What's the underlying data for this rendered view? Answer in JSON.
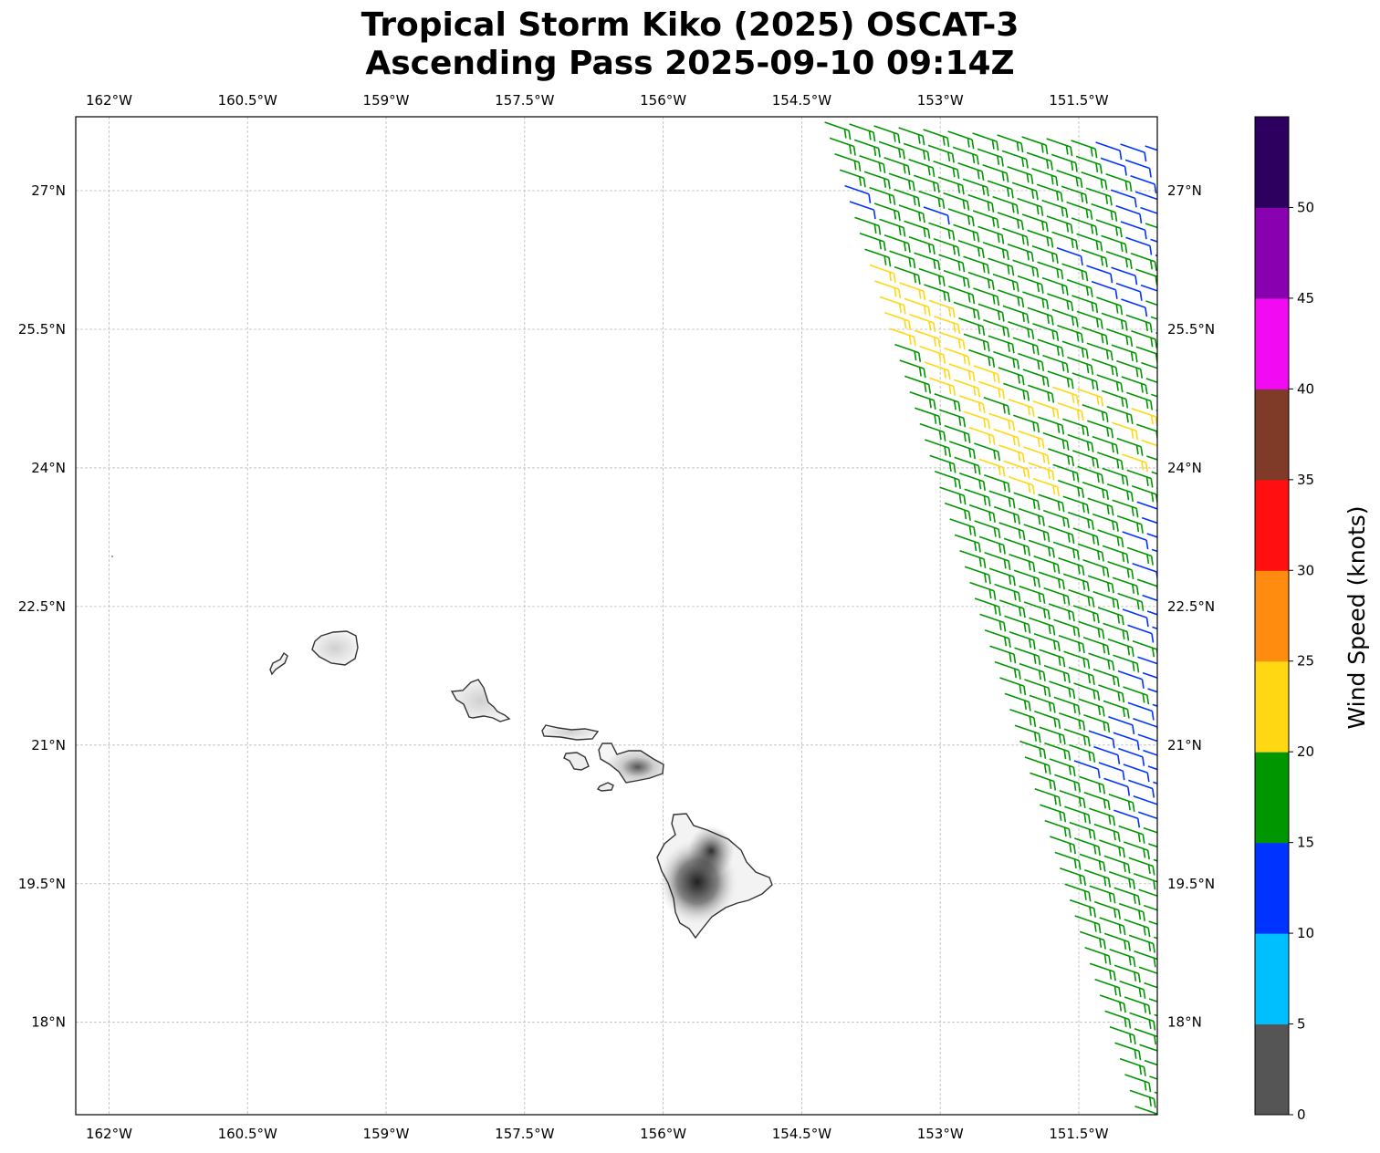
{
  "title": {
    "line1": "Tropical Storm Kiko (2025) OSCAT-3",
    "line2": "Ascending Pass 2025-09-10 09:14Z"
  },
  "chart_data": {
    "type": "map-wind-barbs",
    "lon_range": [
      -162.36,
      -150.65
    ],
    "lat_range": [
      17.0,
      27.8
    ],
    "lon_ticks": [
      {
        "value": -162,
        "label": "162°W"
      },
      {
        "value": -160.5,
        "label": "160.5°W"
      },
      {
        "value": -159,
        "label": "159°W"
      },
      {
        "value": -157.5,
        "label": "157.5°W"
      },
      {
        "value": -156,
        "label": "156°W"
      },
      {
        "value": -154.5,
        "label": "154.5°W"
      },
      {
        "value": -153,
        "label": "153°W"
      },
      {
        "value": -151.5,
        "label": "151.5°W"
      }
    ],
    "lat_ticks": [
      {
        "value": 27,
        "label": "27°N"
      },
      {
        "value": 25.5,
        "label": "25.5°N"
      },
      {
        "value": 24,
        "label": "24°N"
      },
      {
        "value": 22.5,
        "label": "22.5°N"
      },
      {
        "value": 21,
        "label": "21°N"
      },
      {
        "value": 19.5,
        "label": "19.5°N"
      },
      {
        "value": 18,
        "label": "18°N"
      }
    ],
    "grid": true,
    "colorbar": {
      "label": "Wind Speed (knots)",
      "bounds": [
        0,
        5,
        10,
        15,
        20,
        25,
        30,
        35,
        40,
        45,
        50,
        55
      ],
      "colors": [
        "#555555",
        "#00bfff",
        "#0033ff",
        "#009600",
        "#ffd712",
        "#ff8c0f",
        "#ff0f0f",
        "#7f3a28",
        "#f20af2",
        "#8800b0",
        "#2d0060"
      ],
      "tick_labels": [
        "0",
        "5",
        "10",
        "15",
        "20",
        "25",
        "30",
        "35",
        "40",
        "45",
        "50"
      ]
    },
    "barb_classes": {
      "b": {
        "speed_kt": 12,
        "color": "#0033ff"
      },
      "g": {
        "speed_kt": 18,
        "color": "#009600"
      },
      "y": {
        "speed_kt": 22,
        "color": "#ffd712"
      }
    },
    "barb_rows": [
      "gggggggggggbbb",
      "gggggggggggbb",
      "ggggggggggggb",
      "gggggggggggbb",
      "bggggggggggbb",
      "bggbgggggggbg",
      "gggggggggggbb",
      "ggggggggbgggb",
      "gggggggggbbgb",
      "yggggggggbbbg",
      "yyggggggggbgg",
      "yyygggggggggb",
      "yyygggggggggb",
      "yyyggggggggg",
      "gyyggggggggg",
      "gyyygggggggg",
      "gyyyggyyggg",
      "ggygyyyggyg",
      "ggyyggggygg",
      "ggyyyggggyg",
      "gggyygggyg",
      "ggyyyggggg",
      "gggyygggggb",
      "ggggggggbb",
      "ggggggggbb",
      "gggggggbbb",
      "ggggggggbb",
      "gggggggbbb",
      "ggggggggbb",
      "gggggggbbb",
      "ggggggbbb",
      "ggggggbbb",
      "gggggggbb",
      "ggggggbbb",
      "gggggbbbb",
      "ggggggbbb",
      "gggggbbbb",
      "ggggbbbbb",
      "gggbbbbbb",
      "gggbbbbb",
      "ggbbbbbb",
      "gggbbbbb",
      "ggggbbbb",
      "gggbbbbg",
      "gggggbgg",
      "ggggggg",
      "gggggg",
      "ggggggg",
      "gggggb",
      "ggggg",
      "gggggg",
      "ggggb",
      "gggg",
      "ggggg",
      "gggg",
      "ggggb",
      "ggg",
      "gggg",
      "ggg",
      "ggb",
      "gg",
      "gg",
      "g"
    ]
  }
}
